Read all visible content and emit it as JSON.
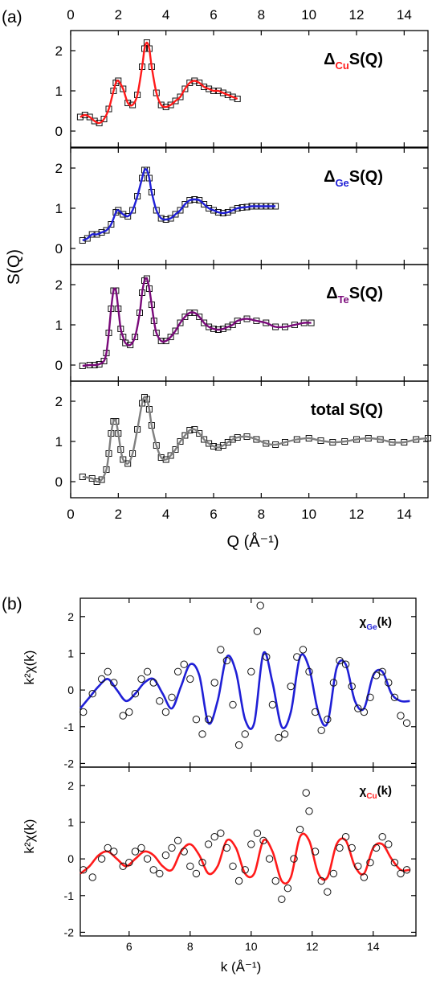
{
  "chart_data": [
    {
      "panel": "(a)",
      "type": "line",
      "xlabel": "Q (Å⁻¹)",
      "ylabel": "S(Q)",
      "xlim": [
        0,
        15
      ],
      "x_ticks": [
        "0",
        "2",
        "4",
        "6",
        "8",
        "10",
        "12",
        "14"
      ],
      "subplots": [
        {
          "label": "ΔCuS(Q)",
          "label_base": "Δ",
          "label_sub": "Cu",
          "label_rest": "S(Q)",
          "color": "#ff1a1a",
          "ylim": [
            -0.4,
            2.5
          ],
          "y_ticks": [
            "0",
            "1",
            "2"
          ],
          "x": [
            0.4,
            0.6,
            0.8,
            1.0,
            1.2,
            1.4,
            1.6,
            1.8,
            1.9,
            2.0,
            2.2,
            2.4,
            2.6,
            2.8,
            3.0,
            3.1,
            3.2,
            3.3,
            3.4,
            3.6,
            3.8,
            4.0,
            4.2,
            4.4,
            4.6,
            4.8,
            5.0,
            5.2,
            5.4,
            5.6,
            5.8,
            6.0,
            6.2,
            6.4,
            6.6,
            6.8,
            7.0
          ],
          "y": [
            0.35,
            0.4,
            0.35,
            0.25,
            0.2,
            0.3,
            0.55,
            1.0,
            1.2,
            1.25,
            1.05,
            0.7,
            0.65,
            0.9,
            1.6,
            2.05,
            2.2,
            2.05,
            1.6,
            0.95,
            0.65,
            0.6,
            0.65,
            0.75,
            0.85,
            1.05,
            1.2,
            1.25,
            1.2,
            1.1,
            1.05,
            1.0,
            1.0,
            0.95,
            0.9,
            0.85,
            0.8
          ]
        },
        {
          "label": "ΔGeS(Q)",
          "label_base": "Δ",
          "label_sub": "Ge",
          "label_rest": "S(Q)",
          "color": "#1f1fd6",
          "ylim": [
            -0.4,
            2.5
          ],
          "y_ticks": [
            "0",
            "1",
            "2"
          ],
          "x": [
            0.5,
            0.7,
            0.9,
            1.1,
            1.3,
            1.5,
            1.7,
            1.9,
            2.0,
            2.2,
            2.4,
            2.6,
            2.8,
            3.0,
            3.1,
            3.2,
            3.3,
            3.4,
            3.6,
            3.8,
            4.0,
            4.2,
            4.4,
            4.6,
            4.8,
            5.0,
            5.2,
            5.4,
            5.6,
            5.8,
            6.0,
            6.2,
            6.4,
            6.6,
            6.8,
            7.0,
            7.2,
            7.4,
            7.6,
            7.8,
            8.0,
            8.2,
            8.4,
            8.6
          ],
          "y": [
            0.2,
            0.25,
            0.35,
            0.35,
            0.4,
            0.45,
            0.6,
            0.9,
            0.95,
            0.85,
            0.8,
            0.95,
            1.3,
            1.75,
            1.95,
            1.95,
            1.75,
            1.4,
            0.95,
            0.75,
            0.72,
            0.75,
            0.85,
            0.95,
            1.1,
            1.2,
            1.22,
            1.2,
            1.1,
            1.0,
            0.95,
            0.9,
            0.88,
            0.9,
            0.95,
            1.0,
            1.02,
            1.03,
            1.05,
            1.05,
            1.05,
            1.05,
            1.05,
            1.05
          ]
        },
        {
          "label": "ΔTeS(Q)",
          "label_base": "Δ",
          "label_sub": "Te",
          "label_rest": "S(Q)",
          "color": "#7a0a7a",
          "ylim": [
            -0.4,
            2.5
          ],
          "y_ticks": [
            "0",
            "1",
            "2"
          ],
          "x": [
            0.5,
            0.8,
            1.0,
            1.2,
            1.4,
            1.5,
            1.6,
            1.7,
            1.8,
            1.9,
            2.0,
            2.1,
            2.2,
            2.3,
            2.5,
            2.7,
            2.9,
            3.0,
            3.1,
            3.2,
            3.3,
            3.4,
            3.5,
            3.6,
            3.8,
            4.0,
            4.2,
            4.4,
            4.6,
            4.8,
            5.0,
            5.2,
            5.4,
            5.6,
            5.8,
            6.0,
            6.2,
            6.4,
            6.6,
            6.8,
            7.0,
            7.4,
            7.8,
            8.2,
            8.6,
            9.0,
            9.4,
            9.8,
            10.1
          ],
          "y": [
            -0.02,
            0.0,
            0.0,
            0.02,
            0.1,
            0.3,
            0.8,
            1.4,
            1.85,
            1.85,
            1.4,
            0.9,
            0.7,
            0.55,
            0.5,
            0.7,
            1.3,
            1.8,
            2.1,
            2.15,
            1.9,
            1.5,
            1.1,
            0.8,
            0.6,
            0.6,
            0.7,
            0.85,
            1.05,
            1.2,
            1.3,
            1.3,
            1.2,
            1.05,
            0.95,
            0.9,
            0.88,
            0.9,
            0.95,
            1.0,
            1.1,
            1.15,
            1.1,
            1.05,
            0.95,
            0.95,
            1.0,
            1.05,
            1.05
          ]
        },
        {
          "label": "total S(Q)",
          "label_base": "total S(Q)",
          "label_sub": "",
          "label_rest": "",
          "color": "#808080",
          "ylim": [
            -0.4,
            2.5
          ],
          "y_ticks": [
            "0",
            "1",
            "2"
          ],
          "x": [
            0.5,
            0.9,
            1.1,
            1.3,
            1.5,
            1.6,
            1.7,
            1.8,
            1.9,
            2.0,
            2.1,
            2.2,
            2.4,
            2.6,
            2.8,
            3.0,
            3.1,
            3.2,
            3.3,
            3.4,
            3.6,
            3.8,
            4.0,
            4.2,
            4.4,
            4.6,
            4.8,
            5.0,
            5.2,
            5.4,
            5.6,
            5.8,
            6.0,
            6.2,
            6.4,
            6.6,
            6.8,
            7.0,
            7.4,
            7.8,
            8.2,
            8.6,
            9.0,
            9.5,
            10.0,
            10.5,
            11.0,
            11.5,
            12.0,
            12.5,
            13.0,
            13.5,
            14.0,
            14.5,
            15.0
          ],
          "y": [
            0.12,
            0.08,
            0.0,
            0.05,
            0.3,
            0.7,
            1.2,
            1.5,
            1.5,
            1.2,
            0.8,
            0.55,
            0.45,
            0.7,
            1.3,
            1.95,
            2.1,
            2.05,
            1.8,
            1.4,
            0.9,
            0.6,
            0.55,
            0.65,
            0.8,
            1.0,
            1.15,
            1.28,
            1.3,
            1.2,
            1.05,
            0.95,
            0.88,
            0.85,
            0.9,
            0.98,
            1.05,
            1.1,
            1.12,
            1.05,
            0.95,
            0.92,
            0.98,
            1.05,
            1.08,
            1.02,
            0.98,
            1.0,
            1.05,
            1.08,
            1.05,
            0.98,
            0.98,
            1.05,
            1.08
          ]
        }
      ]
    },
    {
      "panel": "(b)",
      "type": "scatter",
      "xlabel": "k (Å⁻¹)",
      "ylabel": "k²χ(k)",
      "xlim": [
        4.4,
        15.4
      ],
      "x_ticks": [
        "6",
        "8",
        "10",
        "12",
        "14"
      ],
      "x_tick_values": [
        6,
        8,
        10,
        12,
        14
      ],
      "subplots": [
        {
          "label": "χGe(k)",
          "label_base": "χ",
          "label_sub": "Ge",
          "label_rest": "(k)",
          "color": "#1f1fd6",
          "ylim": [
            -2.1,
            2.5
          ],
          "y_ticks": [
            "-2",
            "-1",
            "0",
            "1",
            "2"
          ],
          "y_tick_values": [
            -2,
            -1,
            0,
            1,
            2
          ],
          "fit": {
            "x": [
              4.4,
              4.7,
              5.0,
              5.3,
              5.6,
              5.9,
              6.2,
              6.5,
              6.8,
              7.1,
              7.4,
              7.7,
              8.0,
              8.3,
              8.6,
              8.9,
              9.2,
              9.5,
              9.8,
              10.1,
              10.4,
              10.7,
              11.0,
              11.3,
              11.6,
              11.9,
              12.2,
              12.5,
              12.8,
              13.1,
              13.4,
              13.7,
              14.0,
              14.3,
              14.6,
              14.9,
              15.2
            ],
            "y": [
              -0.5,
              -0.2,
              0.1,
              0.3,
              0.0,
              -0.3,
              -0.1,
              0.2,
              0.3,
              -0.1,
              -0.5,
              0.1,
              0.7,
              0.4,
              -0.9,
              -0.3,
              0.9,
              0.5,
              -0.8,
              -0.9,
              1.0,
              0.2,
              -1.0,
              -0.6,
              0.9,
              0.6,
              -0.6,
              -0.9,
              0.6,
              0.7,
              -0.3,
              -0.5,
              0.4,
              0.5,
              -0.1,
              -0.3,
              -0.3
            ]
          },
          "points": {
            "x": [
              4.5,
              4.8,
              5.1,
              5.3,
              5.5,
              5.8,
              6.0,
              6.2,
              6.4,
              6.6,
              6.8,
              7.0,
              7.2,
              7.4,
              7.6,
              7.8,
              8.0,
              8.2,
              8.4,
              8.6,
              8.8,
              9.0,
              9.2,
              9.4,
              9.6,
              9.8,
              10.0,
              10.2,
              10.3,
              10.5,
              10.7,
              10.9,
              11.1,
              11.3,
              11.5,
              11.7,
              11.9,
              12.1,
              12.3,
              12.5,
              12.7,
              12.9,
              13.1,
              13.3,
              13.5,
              13.7,
              13.9,
              14.1,
              14.3,
              14.5,
              14.7,
              14.9,
              15.1
            ],
            "y": [
              -0.6,
              -0.1,
              0.3,
              0.5,
              0.2,
              -0.7,
              -0.6,
              -0.1,
              0.3,
              0.5,
              0.2,
              -0.3,
              -0.6,
              -0.2,
              0.5,
              0.7,
              0.3,
              -0.8,
              -1.2,
              -0.8,
              0.2,
              1.1,
              0.8,
              -0.4,
              -1.5,
              -1.2,
              0.5,
              1.6,
              2.3,
              0.9,
              -0.4,
              -1.3,
              -1.2,
              0.1,
              0.9,
              1.1,
              0.5,
              -0.6,
              -1.1,
              -0.8,
              0.2,
              0.8,
              0.7,
              0.1,
              -0.5,
              -0.6,
              -0.2,
              0.4,
              0.5,
              0.2,
              -0.2,
              -0.7,
              -0.9
            ]
          }
        },
        {
          "label": "χCu(k)",
          "label_base": "χ",
          "label_sub": "Cu",
          "label_rest": "(k)",
          "color": "#ff1a1a",
          "ylim": [
            -2.1,
            2.5
          ],
          "y_ticks": [
            "-2",
            "-1",
            "0",
            "1",
            "2"
          ],
          "y_tick_values": [
            -2,
            -1,
            0,
            1,
            2
          ],
          "fit": {
            "x": [
              4.4,
              4.7,
              5.0,
              5.3,
              5.6,
              5.9,
              6.2,
              6.5,
              6.8,
              7.1,
              7.4,
              7.7,
              8.0,
              8.3,
              8.6,
              8.9,
              9.2,
              9.5,
              9.8,
              10.1,
              10.4,
              10.7,
              11.0,
              11.3,
              11.6,
              11.9,
              12.2,
              12.5,
              12.8,
              13.1,
              13.4,
              13.7,
              14.0,
              14.3,
              14.6,
              14.9,
              15.2
            ],
            "y": [
              -0.4,
              -0.2,
              0.1,
              0.2,
              0.0,
              -0.2,
              0.0,
              0.2,
              0.1,
              -0.2,
              -0.3,
              0.2,
              0.4,
              0.1,
              -0.4,
              -0.2,
              0.5,
              0.3,
              -0.4,
              -0.4,
              0.5,
              0.2,
              -0.6,
              -0.5,
              0.6,
              0.5,
              -0.4,
              -0.5,
              0.4,
              0.5,
              -0.2,
              -0.4,
              0.3,
              0.4,
              0.0,
              -0.3,
              -0.3
            ]
          },
          "points": {
            "x": [
              4.5,
              4.8,
              5.1,
              5.3,
              5.5,
              5.8,
              6.0,
              6.2,
              6.4,
              6.6,
              6.8,
              7.0,
              7.2,
              7.4,
              7.6,
              7.8,
              8.0,
              8.2,
              8.4,
              8.6,
              8.8,
              9.0,
              9.2,
              9.4,
              9.6,
              9.8,
              10.0,
              10.2,
              10.4,
              10.6,
              10.8,
              11.0,
              11.2,
              11.4,
              11.6,
              11.8,
              11.9,
              12.1,
              12.3,
              12.5,
              12.7,
              12.9,
              13.1,
              13.3,
              13.5,
              13.7,
              13.9,
              14.1,
              14.3,
              14.5,
              14.7,
              14.9,
              15.1
            ],
            "y": [
              -0.3,
              -0.5,
              0.0,
              0.3,
              0.2,
              -0.2,
              -0.1,
              0.2,
              0.3,
              0.0,
              -0.3,
              -0.4,
              0.1,
              0.3,
              0.5,
              0.2,
              -0.2,
              -0.4,
              -0.1,
              0.4,
              0.6,
              0.7,
              0.3,
              -0.2,
              -0.6,
              -0.3,
              0.4,
              0.7,
              0.5,
              0.0,
              -0.6,
              -1.1,
              -0.8,
              0.0,
              0.8,
              1.8,
              1.3,
              0.2,
              -0.6,
              -0.9,
              -0.4,
              0.3,
              0.6,
              0.3,
              -0.2,
              -0.5,
              -0.1,
              0.3,
              0.6,
              0.4,
              -0.1,
              -0.4,
              -0.3
            ]
          }
        }
      ]
    }
  ]
}
